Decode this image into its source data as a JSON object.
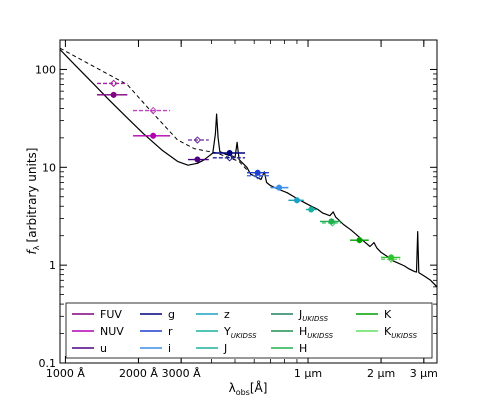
{
  "chart_data": {
    "type": "line",
    "xscale": "log",
    "yscale": "log",
    "xlim": [
      950,
      34000
    ],
    "ylim": [
      0.1,
      200
    ],
    "xlabel_main": "λ",
    "xlabel_sub": "obs",
    "xlabel_unit": "[Å]",
    "ylabel_main": "f",
    "ylabel_sub": "λ",
    "ylabel_unit": "[arbitrary units]",
    "x_ticks": [
      {
        "value": 1000,
        "label": "1000 Å"
      },
      {
        "value": 2000,
        "label": "2000 Å"
      },
      {
        "value": 3000,
        "label": "3000 Å"
      },
      {
        "value": 10000,
        "label": "1 μm"
      },
      {
        "value": 20000,
        "label": "2 μm"
      },
      {
        "value": 30000,
        "label": "3 μm"
      }
    ],
    "y_ticks": [
      {
        "value": 0.1,
        "label": "0.1"
      },
      {
        "value": 1,
        "label": "1"
      },
      {
        "value": 10,
        "label": "10"
      },
      {
        "value": 100,
        "label": "100"
      }
    ],
    "model_curve": [
      [
        950,
        160
      ],
      [
        1100,
        110
      ],
      [
        1300,
        72
      ],
      [
        1500,
        50
      ],
      [
        1800,
        32
      ],
      [
        2100,
        22
      ],
      [
        2500,
        15
      ],
      [
        2900,
        11.5
      ],
      [
        3200,
        10.5
      ],
      [
        3500,
        11
      ],
      [
        3700,
        11.8
      ],
      [
        3900,
        13
      ],
      [
        4050,
        14
      ],
      [
        4150,
        22
      ],
      [
        4200,
        35
      ],
      [
        4260,
        20
      ],
      [
        4330,
        14.5
      ],
      [
        4600,
        13.5
      ],
      [
        4900,
        13
      ],
      [
        5000,
        12.5
      ],
      [
        5100,
        18
      ],
      [
        5200,
        12
      ],
      [
        5600,
        10
      ],
      [
        5800,
        8.5
      ],
      [
        6100,
        8
      ],
      [
        6400,
        7.5
      ],
      [
        6600,
        9
      ],
      [
        6750,
        7
      ],
      [
        7000,
        6.5
      ],
      [
        7500,
        6
      ],
      [
        8200,
        5.5
      ],
      [
        9000,
        4.8
      ],
      [
        9600,
        4.4
      ],
      [
        10300,
        4
      ],
      [
        11000,
        3.7
      ],
      [
        11500,
        3.4
      ],
      [
        12300,
        3.2
      ],
      [
        12700,
        3.5
      ],
      [
        13000,
        3.1
      ],
      [
        14000,
        2.6
      ],
      [
        15000,
        2.3
      ],
      [
        16000,
        2
      ],
      [
        17000,
        1.75
      ],
      [
        18000,
        1.55
      ],
      [
        18700,
        1.7
      ],
      [
        19200,
        1.5
      ],
      [
        20000,
        1.35
      ],
      [
        21500,
        1.2
      ],
      [
        22500,
        1.1
      ],
      [
        23500,
        1.05
      ],
      [
        25000,
        0.98
      ],
      [
        26000,
        0.92
      ],
      [
        27500,
        0.86
      ],
      [
        28000,
        0.85
      ],
      [
        28300,
        2.2
      ],
      [
        28600,
        0.84
      ],
      [
        30000,
        0.78
      ],
      [
        32000,
        0.7
      ],
      [
        34000,
        0.6
      ]
    ],
    "dashed_line": [
      [
        950,
        165
      ],
      [
        1800,
        70
      ],
      [
        2200,
        40
      ],
      [
        2900,
        19
      ],
      [
        3400,
        15.5
      ],
      [
        4200,
        14
      ],
      [
        5200,
        11.5
      ],
      [
        5700,
        9
      ]
    ],
    "points_solid": [
      {
        "x": 1580,
        "y": 55,
        "xerr": [
          1350,
          1800
        ],
        "color": "#800080"
      },
      {
        "x": 2300,
        "y": 21,
        "xerr": [
          1900,
          2700
        ],
        "color": "#b000b0"
      },
      {
        "x": 3500,
        "y": 12,
        "xerr": [
          3200,
          3900
        ],
        "color": "#4b0082"
      },
      {
        "x": 4750,
        "y": 14,
        "xerr": [
          4050,
          5500
        ],
        "color": "#000080"
      },
      {
        "x": 6200,
        "y": 8.8,
        "xerr": [
          5600,
          6900
        ],
        "color": "#1f3fd0"
      },
      {
        "x": 7600,
        "y": 6.2,
        "xerr": [
          7000,
          8300
        ],
        "color": "#3a8ee6"
      },
      {
        "x": 9000,
        "y": 4.6,
        "xerr": [
          8300,
          9600
        ],
        "color": "#1aa0c0"
      },
      {
        "x": 10300,
        "y": 3.7,
        "xerr": [
          9800,
          10900
        ],
        "color": "#18b0a0"
      },
      {
        "x": 12500,
        "y": 2.8,
        "xerr": [
          11200,
          13600
        ],
        "color": "#20b050"
      },
      {
        "x": 16300,
        "y": 1.8,
        "xerr": [
          14900,
          17800
        ],
        "color": "#00a000"
      },
      {
        "x": 22000,
        "y": 1.2,
        "xerr": [
          20000,
          24000
        ],
        "color": "#30c030"
      }
    ],
    "points_dashed": [
      {
        "x": 1580,
        "y": 72,
        "xerr": [
          1350,
          1800
        ],
        "color": "#a020a0"
      },
      {
        "x": 2300,
        "y": 38,
        "xerr": [
          1900,
          2700
        ],
        "color": "#c040c0"
      },
      {
        "x": 3500,
        "y": 19,
        "xerr": [
          3200,
          3900
        ],
        "color": "#6a2aa0"
      },
      {
        "x": 4750,
        "y": 12.5,
        "xerr": [
          4050,
          5500
        ],
        "color": "#2020a0"
      },
      {
        "x": 6200,
        "y": 8.2,
        "xerr": [
          5600,
          6900
        ],
        "color": "#4060e0"
      },
      {
        "x": 12600,
        "y": 2.7,
        "xerr": [
          11400,
          13700
        ],
        "color": "#40c070"
      },
      {
        "x": 22000,
        "y": 1.15,
        "xerr": [
          20000,
          24000
        ],
        "color": "#60d060"
      }
    ],
    "legend": {
      "placement": "bottom",
      "columns": [
        [
          {
            "label": "FUV",
            "color": "#800080"
          },
          {
            "label": "NUV",
            "color": "#b000b0"
          },
          {
            "label": "u",
            "color": "#4b0082"
          }
        ],
        [
          {
            "label": "g",
            "color": "#000080"
          },
          {
            "label": "r",
            "color": "#1f3fd0"
          },
          {
            "label": "i",
            "color": "#3a8ee6"
          }
        ],
        [
          {
            "label": "z",
            "color": "#1aa0c0"
          },
          {
            "label": "Y",
            "sub": "UKIDSS",
            "color": "#18b0a0"
          },
          {
            "label": "J",
            "color": "#20b0a0"
          }
        ],
        [
          {
            "label": "J",
            "sub": "UKIDSS",
            "color": "#208060"
          },
          {
            "label": "H",
            "sub": "UKIDSS",
            "color": "#209050"
          },
          {
            "label": "H",
            "color": "#20b050"
          }
        ],
        [
          {
            "label": "K",
            "color": "#00a000"
          },
          {
            "label": "K",
            "sub": "UKIDSS",
            "color": "#60e060"
          }
        ]
      ]
    }
  }
}
